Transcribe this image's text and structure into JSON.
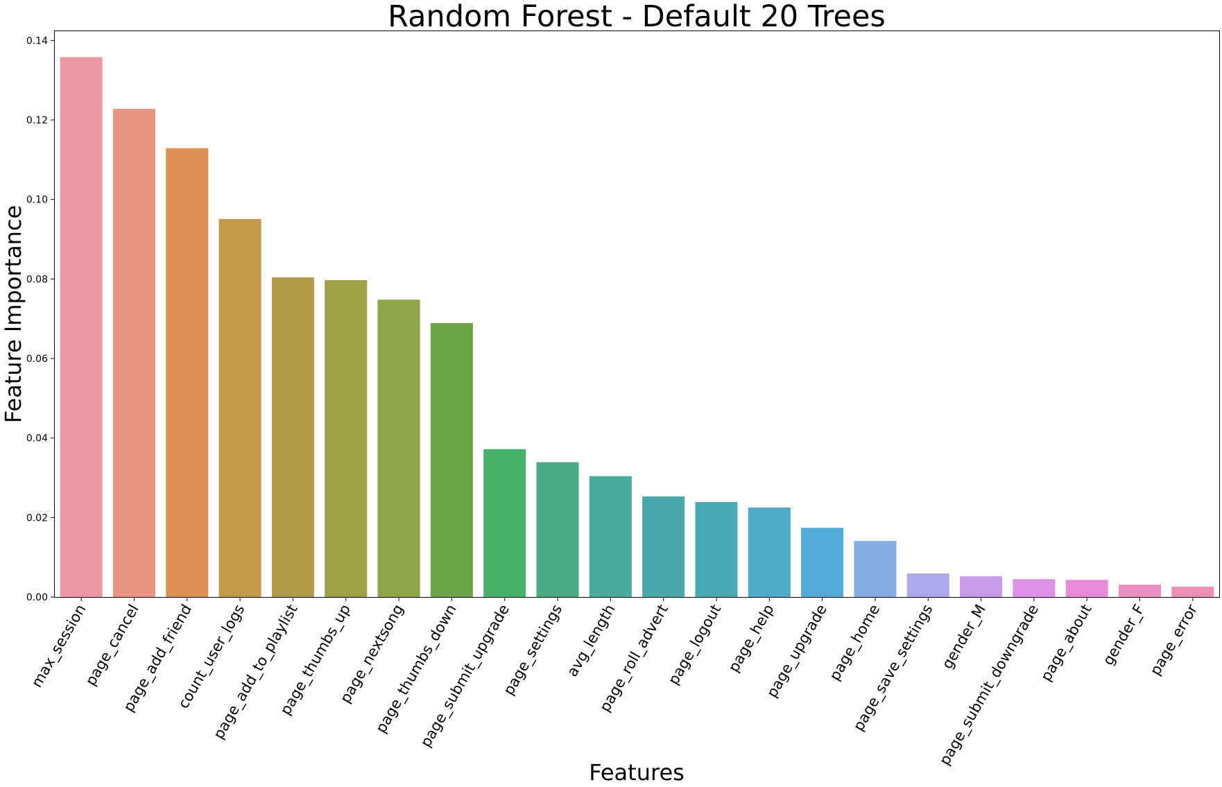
{
  "chart_data": {
    "type": "bar",
    "title": "Random Forest - Default 20 Trees",
    "xlabel": "Features",
    "ylabel": "Feature Importance",
    "ylim": [
      0,
      0.1425
    ],
    "yticks": [
      "0.00",
      "0.02",
      "0.04",
      "0.06",
      "0.08",
      "0.10",
      "0.12",
      "0.14"
    ],
    "grid": false,
    "legend": "none",
    "categories": [
      "max_session",
      "page_cancel",
      "page_add_friend",
      "count_user_logs",
      "page_add_to_playlist",
      "page_thumbs_up",
      "page_nextsong",
      "page_thumbs_down",
      "page_submit_upgrade",
      "page_settings",
      "avg_length",
      "page_roll_advert",
      "page_logout",
      "page_help",
      "page_upgrade",
      "page_home",
      "page_save_settings",
      "gender_M",
      "page_submit_downgrade",
      "page_about",
      "gender_F",
      "page_error"
    ],
    "values": [
      0.1358,
      0.1228,
      0.1129,
      0.0951,
      0.0804,
      0.0797,
      0.0748,
      0.0689,
      0.0372,
      0.0339,
      0.0304,
      0.0253,
      0.0239,
      0.0225,
      0.0174,
      0.0141,
      0.0059,
      0.0052,
      0.0045,
      0.0043,
      0.0031,
      0.0026
    ],
    "colors": [
      "#ea96a3",
      "#e89581",
      "#db9154",
      "#c39a4a",
      "#af9c4a",
      "#9f9f46",
      "#8ea547",
      "#6ba546",
      "#49b16b",
      "#4aab86",
      "#4aaa9b",
      "#4aa8a8",
      "#4ba9b5",
      "#4eaac6",
      "#53a9d8",
      "#86aee5",
      "#aba8eb",
      "#c49ce9",
      "#dd90e6",
      "#e78ad8",
      "#e88fc4",
      "#ea90b4"
    ]
  }
}
